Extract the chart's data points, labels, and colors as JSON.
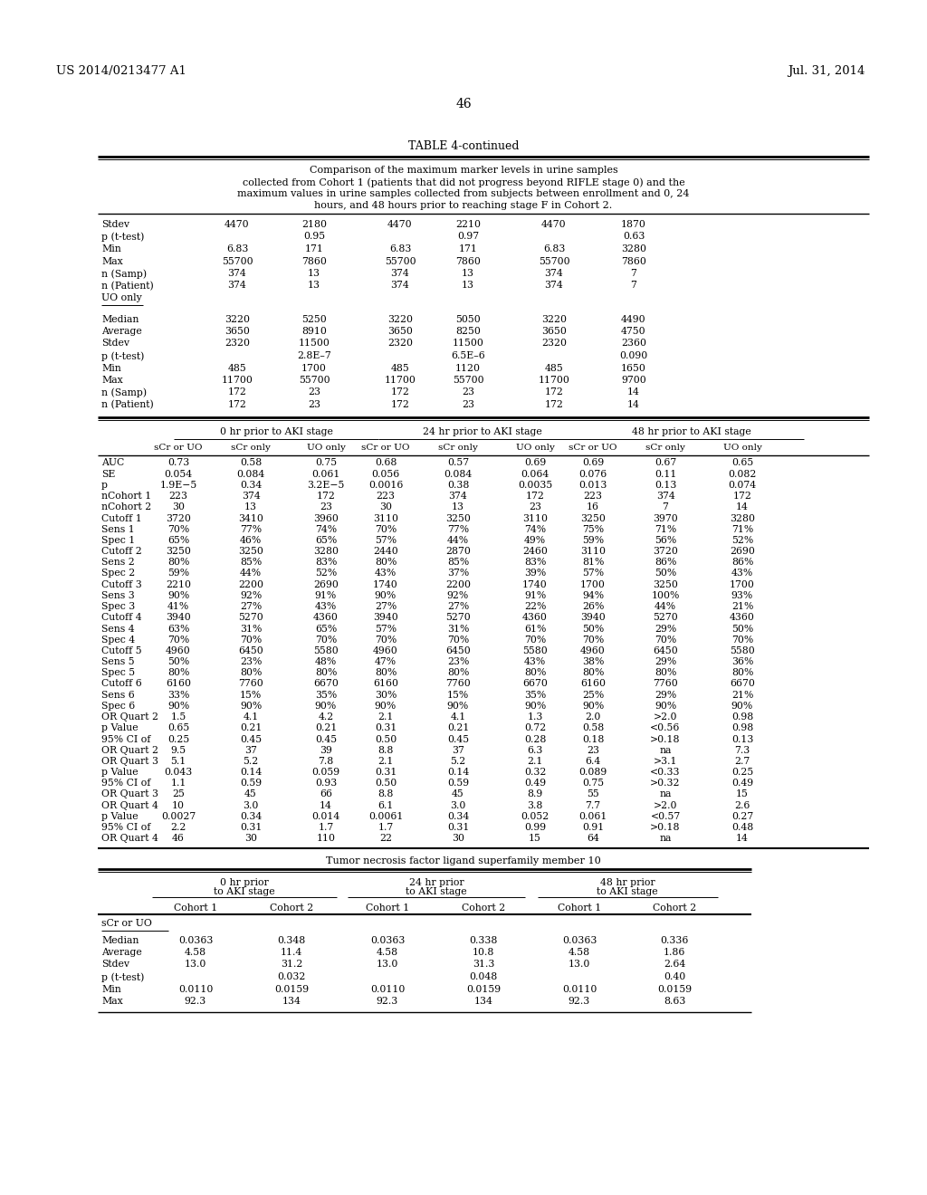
{
  "header_left": "US 2014/0213477 A1",
  "header_right": "Jul. 31, 2014",
  "page_number": "46",
  "table_title": "TABLE 4-continued",
  "table_caption_lines": [
    "Comparison of the maximum marker levels in urine samples",
    "collected from Cohort 1 (patients that did not progress beyond RIFLE stage 0) and the",
    "maximum values in urine samples collected from subjects between enrollment and 0, 24",
    "hours, and 48 hours prior to reaching stage F in Cohort 2."
  ],
  "section1_rows": [
    [
      "Stdev",
      "4470",
      "2180",
      "4470",
      "2210",
      "4470",
      "1870"
    ],
    [
      "p (t-test)",
      "",
      "0.95",
      "",
      "0.97",
      "",
      "0.63"
    ],
    [
      "Min",
      "6.83",
      "171",
      "6.83",
      "171",
      "6.83",
      "3280"
    ],
    [
      "Max",
      "55700",
      "7860",
      "55700",
      "7860",
      "55700",
      "7860"
    ],
    [
      "n (Samp)",
      "374",
      "13",
      "374",
      "13",
      "374",
      "7"
    ],
    [
      "n (Patient)",
      "374",
      "13",
      "374",
      "13",
      "374",
      "7"
    ],
    [
      "UO only",
      "",
      "",
      "",
      "",
      "",
      ""
    ]
  ],
  "section2_rows": [
    [
      "Median",
      "3220",
      "5250",
      "3220",
      "5050",
      "3220",
      "4490"
    ],
    [
      "Average",
      "3650",
      "8910",
      "3650",
      "8250",
      "3650",
      "4750"
    ],
    [
      "Stdev",
      "2320",
      "11500",
      "2320",
      "11500",
      "2320",
      "2360"
    ],
    [
      "p (t-test)",
      "",
      "2.8E–7",
      "",
      "6.5E–6",
      "",
      "0.090"
    ],
    [
      "Min",
      "485",
      "1700",
      "485",
      "1120",
      "485",
      "1650"
    ],
    [
      "Max",
      "11700",
      "55700",
      "11700",
      "55700",
      "11700",
      "9700"
    ],
    [
      "n (Samp)",
      "172",
      "23",
      "172",
      "23",
      "172",
      "14"
    ],
    [
      "n (Patient)",
      "172",
      "23",
      "172",
      "23",
      "172",
      "14"
    ]
  ],
  "main_col_groups": [
    "0 hr prior to AKI stage",
    "24 hr prior to AKI stage",
    "48 hr prior to AKI stage"
  ],
  "main_sub_cols": [
    "sCr or UO",
    "sCr only",
    "UO only",
    "sCr or UO",
    "sCr only",
    "UO only",
    "sCr or UO",
    "sCr only",
    "UO only"
  ],
  "main_rows": [
    [
      "AUC",
      "0.73",
      "0.58",
      "0.75",
      "0.68",
      "0.57",
      "0.69",
      "0.69",
      "0.67",
      "0.65"
    ],
    [
      "SE",
      "0.054",
      "0.084",
      "0.061",
      "0.056",
      "0.084",
      "0.064",
      "0.076",
      "0.11",
      "0.082"
    ],
    [
      "p",
      "1.9E−5",
      "0.34",
      "3.2E−5",
      "0.0016",
      "0.38",
      "0.0035",
      "0.013",
      "0.13",
      "0.074"
    ],
    [
      "nCohort 1",
      "223",
      "374",
      "172",
      "223",
      "374",
      "172",
      "223",
      "374",
      "172"
    ],
    [
      "nCohort 2",
      "30",
      "13",
      "23",
      "30",
      "13",
      "23",
      "16",
      "7",
      "14"
    ],
    [
      "Cutoff 1",
      "3720",
      "3410",
      "3960",
      "3110",
      "3250",
      "3110",
      "3250",
      "3970",
      "3280"
    ],
    [
      "Sens 1",
      "70%",
      "77%",
      "74%",
      "70%",
      "77%",
      "74%",
      "75%",
      "71%",
      "71%"
    ],
    [
      "Spec 1",
      "65%",
      "46%",
      "65%",
      "57%",
      "44%",
      "49%",
      "59%",
      "56%",
      "52%"
    ],
    [
      "Cutoff 2",
      "3250",
      "3250",
      "3280",
      "2440",
      "2870",
      "2460",
      "3110",
      "3720",
      "2690"
    ],
    [
      "Sens 2",
      "80%",
      "85%",
      "83%",
      "80%",
      "85%",
      "83%",
      "81%",
      "86%",
      "86%"
    ],
    [
      "Spec 2",
      "59%",
      "44%",
      "52%",
      "43%",
      "37%",
      "39%",
      "57%",
      "50%",
      "43%"
    ],
    [
      "Cutoff 3",
      "2210",
      "2200",
      "2690",
      "1740",
      "2200",
      "1740",
      "1700",
      "3250",
      "1700"
    ],
    [
      "Sens 3",
      "90%",
      "92%",
      "91%",
      "90%",
      "92%",
      "91%",
      "94%",
      "100%",
      "93%"
    ],
    [
      "Spec 3",
      "41%",
      "27%",
      "43%",
      "27%",
      "27%",
      "22%",
      "26%",
      "44%",
      "21%"
    ],
    [
      "Cutoff 4",
      "3940",
      "5270",
      "4360",
      "3940",
      "5270",
      "4360",
      "3940",
      "5270",
      "4360"
    ],
    [
      "Sens 4",
      "63%",
      "31%",
      "65%",
      "57%",
      "31%",
      "61%",
      "50%",
      "29%",
      "50%"
    ],
    [
      "Spec 4",
      "70%",
      "70%",
      "70%",
      "70%",
      "70%",
      "70%",
      "70%",
      "70%",
      "70%"
    ],
    [
      "Cutoff 5",
      "4960",
      "6450",
      "5580",
      "4960",
      "6450",
      "5580",
      "4960",
      "6450",
      "5580"
    ],
    [
      "Sens 5",
      "50%",
      "23%",
      "48%",
      "47%",
      "23%",
      "43%",
      "38%",
      "29%",
      "36%"
    ],
    [
      "Spec 5",
      "80%",
      "80%",
      "80%",
      "80%",
      "80%",
      "80%",
      "80%",
      "80%",
      "80%"
    ],
    [
      "Cutoff 6",
      "6160",
      "7760",
      "6670",
      "6160",
      "7760",
      "6670",
      "6160",
      "7760",
      "6670"
    ],
    [
      "Sens 6",
      "33%",
      "15%",
      "35%",
      "30%",
      "15%",
      "35%",
      "25%",
      "29%",
      "21%"
    ],
    [
      "Spec 6",
      "90%",
      "90%",
      "90%",
      "90%",
      "90%",
      "90%",
      "90%",
      "90%",
      "90%"
    ],
    [
      "OR Quart 2",
      "1.5",
      "4.1",
      "4.2",
      "2.1",
      "4.1",
      "1.3",
      "2.0",
      ">2.0",
      "0.98"
    ],
    [
      "p Value",
      "0.65",
      "0.21",
      "0.21",
      "0.31",
      "0.21",
      "0.72",
      "0.58",
      "<0.56",
      "0.98"
    ],
    [
      "95% CI of",
      "0.25",
      "0.45",
      "0.45",
      "0.50",
      "0.45",
      "0.28",
      "0.18",
      ">0.18",
      "0.13"
    ],
    [
      "OR Quart 2",
      "9.5",
      "37",
      "39",
      "8.8",
      "37",
      "6.3",
      "23",
      "na",
      "7.3"
    ],
    [
      "OR Quart 3",
      "5.1",
      "5.2",
      "7.8",
      "2.1",
      "5.2",
      "2.1",
      "6.4",
      ">3.1",
      "2.7"
    ],
    [
      "p Value",
      "0.043",
      "0.14",
      "0.059",
      "0.31",
      "0.14",
      "0.32",
      "0.089",
      "<0.33",
      "0.25"
    ],
    [
      "95% CI of",
      "1.1",
      "0.59",
      "0.93",
      "0.50",
      "0.59",
      "0.49",
      "0.75",
      ">0.32",
      "0.49"
    ],
    [
      "OR Quart 3",
      "25",
      "45",
      "66",
      "8.8",
      "45",
      "8.9",
      "55",
      "na",
      "15"
    ],
    [
      "OR Quart 4",
      "10",
      "3.0",
      "14",
      "6.1",
      "3.0",
      "3.8",
      "7.7",
      ">2.0",
      "2.6"
    ],
    [
      "p Value",
      "0.0027",
      "0.34",
      "0.014",
      "0.0061",
      "0.34",
      "0.052",
      "0.061",
      "<0.57",
      "0.27"
    ],
    [
      "95% CI of",
      "2.2",
      "0.31",
      "1.7",
      "1.7",
      "0.31",
      "0.99",
      "0.91",
      ">0.18",
      "0.48"
    ],
    [
      "OR Quart 4",
      "46",
      "30",
      "110",
      "22",
      "30",
      "15",
      "64",
      "na",
      "14"
    ]
  ],
  "bottom_title": "Tumor necrosis factor ligand superfamily member 10",
  "bottom_col_groups": [
    "0 hr prior\nto AKI stage",
    "24 hr prior\nto AKI stage",
    "48 hr prior\nto AKI stage"
  ],
  "bottom_sub_cols": [
    "Cohort 1",
    "Cohort 2",
    "Cohort 1",
    "Cohort 2",
    "Cohort 1",
    "Cohort 2"
  ],
  "bottom_section": "sCr or UO",
  "bottom_rows": [
    [
      "Median",
      "0.0363",
      "0.348",
      "0.0363",
      "0.338",
      "0.0363",
      "0.336"
    ],
    [
      "Average",
      "4.58",
      "11.4",
      "4.58",
      "10.8",
      "4.58",
      "1.86"
    ],
    [
      "Stdev",
      "13.0",
      "31.2",
      "13.0",
      "31.3",
      "13.0",
      "2.64"
    ],
    [
      "p (t-test)",
      "",
      "0.032",
      "",
      "0.048",
      "",
      "0.40"
    ],
    [
      "Min",
      "0.0110",
      "0.0159",
      "0.0110",
      "0.0159",
      "0.0110",
      "0.0159"
    ],
    [
      "Max",
      "92.3",
      "134",
      "92.3",
      "134",
      "92.3",
      "8.63"
    ]
  ],
  "bg_color": "#ffffff",
  "text_color": "#000000"
}
